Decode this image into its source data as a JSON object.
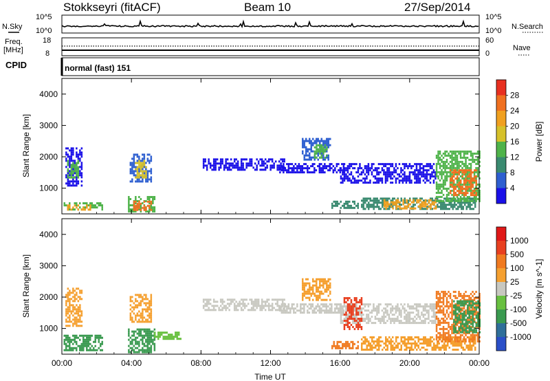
{
  "header": {
    "station": "Stokkseyri (fitACF)",
    "beam": "Beam 10",
    "date": "27/Sep/2014"
  },
  "top_panels": {
    "nsky_label": "N.Sky",
    "nsearch_label": "N.Search",
    "noise_top_tick_left": "10^5",
    "noise_bottom_tick_left": "10^0",
    "noise_top_tick_right": "10^5",
    "noise_bottom_tick_right": "10^0",
    "freq_label_1": "Freq.",
    "freq_label_2": "[MHz]",
    "freq_top_tick": "18",
    "freq_bottom_tick": "8",
    "nave_top_tick": "60",
    "nave_bottom_tick": "0",
    "nave_label": "Nave",
    "cpid_label": "CPID",
    "cpid_value": "normal (fast) 151"
  },
  "chart_data": [
    {
      "type": "heatmap",
      "title": "",
      "xlabel": "Time UT",
      "ylabel": "Slant Range [km]",
      "x_ticks": [
        "00:00",
        "04:00",
        "08:00",
        "12:00",
        "16:00",
        "20:00",
        "00:00"
      ],
      "y_ticks": [
        "1000",
        "2000",
        "3000",
        "4000"
      ],
      "xlim_hours": [
        0,
        24
      ],
      "ylim_km": [
        180,
        4500
      ],
      "colorbar": {
        "label": "Power [dB]",
        "ticks": [
          "4",
          "8",
          "12",
          "16",
          "20",
          "24",
          "28"
        ],
        "colors": [
          "#1a10e8",
          "#2e5fd0",
          "#3a8a70",
          "#4fb34a",
          "#d6c12a",
          "#f0a020",
          "#f07020",
          "#e83020"
        ]
      },
      "regions": [
        {
          "t0": 0.2,
          "t1": 1.1,
          "r0": 1100,
          "r1": 2300,
          "level": 0
        },
        {
          "t0": 0.3,
          "t1": 0.9,
          "r0": 1350,
          "r1": 1900,
          "level": 3
        },
        {
          "t0": 0.1,
          "t1": 2.3,
          "r0": 300,
          "r1": 550,
          "level": 3
        },
        {
          "t0": 0.3,
          "t1": 1.6,
          "r0": 320,
          "r1": 480,
          "level": 5
        },
        {
          "t0": 3.8,
          "t1": 5.3,
          "r0": 250,
          "r1": 750,
          "level": 3
        },
        {
          "t0": 4.1,
          "t1": 5.1,
          "r0": 280,
          "r1": 600,
          "level": 6
        },
        {
          "t0": 3.9,
          "t1": 5.1,
          "r0": 1200,
          "r1": 2100,
          "level": 1
        },
        {
          "t0": 4.2,
          "t1": 4.8,
          "r0": 1350,
          "r1": 1900,
          "level": 4
        },
        {
          "t0": 8.1,
          "t1": 12.8,
          "r0": 1600,
          "r1": 1950,
          "level": 0
        },
        {
          "t0": 12.5,
          "t1": 16.2,
          "r0": 1500,
          "r1": 1800,
          "level": 0
        },
        {
          "t0": 13.8,
          "t1": 15.4,
          "r0": 1900,
          "r1": 2600,
          "level": 1
        },
        {
          "t0": 14.5,
          "t1": 15.2,
          "r0": 2000,
          "r1": 2400,
          "level": 3
        },
        {
          "t0": 16.0,
          "t1": 21.5,
          "r0": 1200,
          "r1": 1800,
          "level": 0
        },
        {
          "t0": 15.5,
          "t1": 17.0,
          "r0": 400,
          "r1": 600,
          "level": 2
        },
        {
          "t0": 17.2,
          "t1": 23.8,
          "r0": 350,
          "r1": 700,
          "level": 2
        },
        {
          "t0": 18.5,
          "t1": 21.5,
          "r0": 350,
          "r1": 650,
          "level": 5
        },
        {
          "t0": 21.5,
          "t1": 24.0,
          "r0": 600,
          "r1": 2200,
          "level": 3
        },
        {
          "t0": 22.3,
          "t1": 23.8,
          "r0": 800,
          "r1": 1600,
          "level": 6
        }
      ]
    },
    {
      "type": "heatmap",
      "title": "",
      "xlabel": "Time UT",
      "ylabel": "Slant Range [km]",
      "x_ticks": [
        "00:00",
        "04:00",
        "08:00",
        "12:00",
        "16:00",
        "20:00",
        "00:00"
      ],
      "y_ticks": [
        "1000",
        "2000",
        "3000",
        "4000"
      ],
      "xlim_hours": [
        0,
        24
      ],
      "ylim_km": [
        180,
        4500
      ],
      "colorbar": {
        "label": "Velocity [m s^-1]",
        "ticks": [
          "1000",
          "500",
          "100",
          "25",
          "-25",
          "-100",
          "-500",
          "-1000"
        ],
        "colors": [
          "#2a4fc8",
          "#2f6f9a",
          "#3a9a50",
          "#68c040",
          "#c8c8c0",
          "#f5a030",
          "#f07a20",
          "#e84020",
          "#e01818"
        ]
      },
      "regions": [
        {
          "t0": 0.2,
          "t1": 1.1,
          "r0": 1100,
          "r1": 2300,
          "level": 5
        },
        {
          "t0": 0.1,
          "t1": 2.3,
          "r0": 300,
          "r1": 800,
          "level": 2
        },
        {
          "t0": 3.8,
          "t1": 5.3,
          "r0": 250,
          "r1": 1000,
          "level": 2
        },
        {
          "t0": 3.9,
          "t1": 5.1,
          "r0": 1200,
          "r1": 2100,
          "level": 5
        },
        {
          "t0": 5.3,
          "t1": 6.8,
          "r0": 700,
          "r1": 900,
          "level": 3
        },
        {
          "t0": 8.1,
          "t1": 12.8,
          "r0": 1600,
          "r1": 1950,
          "level": 4
        },
        {
          "t0": 12.5,
          "t1": 16.2,
          "r0": 1500,
          "r1": 1800,
          "level": 4
        },
        {
          "t0": 13.8,
          "t1": 15.4,
          "r0": 1900,
          "r1": 2600,
          "level": 5
        },
        {
          "t0": 16.0,
          "t1": 21.5,
          "r0": 1200,
          "r1": 1800,
          "level": 4
        },
        {
          "t0": 16.2,
          "t1": 17.2,
          "r0": 1000,
          "r1": 2000,
          "level": 7
        },
        {
          "t0": 15.5,
          "t1": 17.0,
          "r0": 400,
          "r1": 600,
          "level": 6
        },
        {
          "t0": 17.2,
          "t1": 23.8,
          "r0": 350,
          "r1": 750,
          "level": 5
        },
        {
          "t0": 21.5,
          "t1": 24.0,
          "r0": 600,
          "r1": 2200,
          "level": 6
        },
        {
          "t0": 22.5,
          "t1": 24.0,
          "r0": 900,
          "r1": 1900,
          "level": 2
        }
      ]
    }
  ]
}
